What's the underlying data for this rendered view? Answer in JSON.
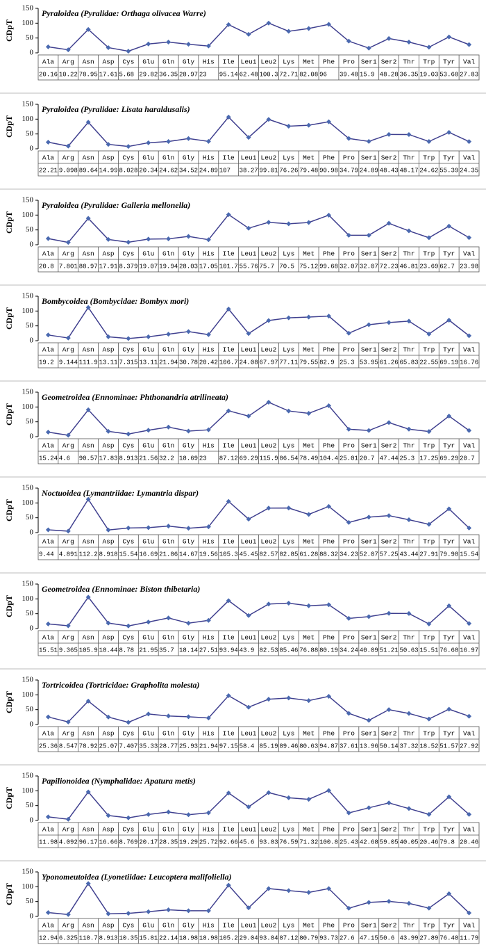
{
  "chart_data": [
    {
      "type": "line",
      "title": "Pyraloidea (Pyralidae: Orthaga olivacea Warre)",
      "y_label": "CDpT",
      "categories": [
        "Ala",
        "Arg",
        "Asn",
        "Asp",
        "Cys",
        "Glu",
        "Gln",
        "Gly",
        "His",
        "Ile",
        "Leu1",
        "Leu2",
        "Lys",
        "Met",
        "Phe",
        "Pro",
        "Ser1",
        "Ser2",
        "Thr",
        "Trp",
        "Tyr",
        "Val"
      ],
      "values": [
        20.16,
        10.22,
        78.95,
        17.61,
        5.68,
        29.82,
        36.35,
        28.97,
        23,
        95.14,
        62.48,
        100.3,
        72.71,
        82.08,
        96,
        39.48,
        15.9,
        48.28,
        36.35,
        19.03,
        53.68,
        27.83
      ],
      "color": "#40408f",
      "marker_color": "#4a69b0",
      "ylim": [
        0,
        150
      ],
      "yticks": [
        0,
        50,
        100,
        150
      ]
    },
    {
      "type": "line",
      "title": "Pyraloidea (Pyralidae: Lisata haraldusalis)",
      "y_label": "CDpT",
      "categories": [
        "Ala",
        "Arg",
        "Asn",
        "Asp",
        "Cys",
        "Glu",
        "Gln",
        "Gly",
        "His",
        "Ile",
        "Leu1",
        "Leu2",
        "Lys",
        "Met",
        "Phe",
        "Pro",
        "Ser1",
        "Ser2",
        "Thr",
        "Trp",
        "Tyr",
        "Val"
      ],
      "values": [
        22.21,
        9.098,
        89.64,
        14.99,
        8.028,
        20.34,
        24.62,
        34.52,
        24.89,
        107,
        38.27,
        99.01,
        76.26,
        79.48,
        90.98,
        34.79,
        24.89,
        48.43,
        48.17,
        24.62,
        55.39,
        24.35
      ],
      "color": "#40408f",
      "marker_color": "#4a69b0",
      "ylim": [
        0,
        150
      ],
      "yticks": [
        0,
        50,
        100,
        150
      ]
    },
    {
      "type": "line",
      "title": "Pyraloidea (Pyralidae: Galleria mellonella)",
      "y_label": "CDpT",
      "categories": [
        "Ala",
        "Arg",
        "Asn",
        "Asp",
        "Cys",
        "Glu",
        "Gln",
        "Gly",
        "His",
        "Ile",
        "Leu1",
        "Leu2",
        "Lys",
        "Met",
        "Phe",
        "Pro",
        "Ser1",
        "Ser2",
        "Thr",
        "Trp",
        "Tyr",
        "Val"
      ],
      "values": [
        20.8,
        7.801,
        88.97,
        17.91,
        8.379,
        19.07,
        19.94,
        28.03,
        17.05,
        101.7,
        55.76,
        75.7,
        70.5,
        75.12,
        99.68,
        32.07,
        32.07,
        72.23,
        46.81,
        23.69,
        62.7,
        23.98
      ],
      "color": "#40408f",
      "marker_color": "#4a69b0",
      "ylim": [
        0,
        150
      ],
      "yticks": [
        0,
        50,
        100,
        150
      ]
    },
    {
      "type": "line",
      "title": "Bombycoidea (Bombycidae: Bombyx mori)",
      "y_label": "CDpT",
      "categories": [
        "Ala",
        "Arg",
        "Asn",
        "Asp",
        "Cys",
        "Glu",
        "Gln",
        "Gly",
        "His",
        "Ile",
        "Leu1",
        "Leu2",
        "Lys",
        "Met",
        "Phe",
        "Pro",
        "Ser1",
        "Ser2",
        "Thr",
        "Trp",
        "Tyr",
        "Val"
      ],
      "values": [
        19.2,
        9.144,
        111.9,
        13.11,
        7.315,
        13.11,
        21.94,
        30.78,
        20.42,
        106.7,
        24.08,
        67.97,
        77.11,
        79.55,
        82.9,
        25.3,
        53.95,
        61.26,
        65.83,
        22.55,
        69.19,
        16.76
      ],
      "color": "#40408f",
      "marker_color": "#4a69b0",
      "ylim": [
        0,
        150
      ],
      "yticks": [
        0,
        50,
        100,
        150
      ]
    },
    {
      "type": "line",
      "title": "Geometroidea (Ennominae: Phthonandria atrilineata)",
      "y_label": "CDpT",
      "categories": [
        "Ala",
        "Arg",
        "Asn",
        "Asp",
        "Cys",
        "Glu",
        "Gln",
        "Gly",
        "His",
        "Ile",
        "Leu1",
        "Leu2",
        "Lys",
        "Met",
        "Phe",
        "Pro",
        "Ser1",
        "Ser2",
        "Thr",
        "Trp",
        "Tyr",
        "Val"
      ],
      "values": [
        15.24,
        4.6,
        90.57,
        17.83,
        8.913,
        21.56,
        32.2,
        18.69,
        23,
        87.12,
        69.29,
        115.9,
        86.54,
        78.49,
        104.4,
        25.01,
        20.7,
        47.44,
        25.3,
        17.25,
        69.29,
        20.7
      ],
      "color": "#40408f",
      "marker_color": "#4a69b0",
      "ylim": [
        0,
        150
      ],
      "yticks": [
        0,
        50,
        100,
        150
      ]
    },
    {
      "type": "line",
      "title": "Noctuoidea (Lymantriidae: Lymantria dispar)",
      "y_label": "CDpT",
      "categories": [
        "Ala",
        "Arg",
        "Asn",
        "Asp",
        "Cys",
        "Glu",
        "Gln",
        "Gly",
        "His",
        "Ile",
        "Leu1",
        "Leu2",
        "Lys",
        "Met",
        "Phe",
        "Pro",
        "Ser1",
        "Ser2",
        "Thr",
        "Trp",
        "Tyr",
        "Val"
      ],
      "values": [
        9.44,
        4.891,
        112.2,
        8.918,
        15.54,
        16.69,
        21.86,
        14.67,
        19.56,
        105.3,
        45.45,
        82.57,
        82.85,
        61.28,
        88.32,
        34.23,
        52.07,
        57.25,
        43.44,
        27.91,
        79.98,
        15.54
      ],
      "color": "#40408f",
      "marker_color": "#4a69b0",
      "ylim": [
        0,
        150
      ],
      "yticks": [
        0,
        50,
        100,
        150
      ]
    },
    {
      "type": "line",
      "title": "Geometroidea (Ennominae: Biston thibetaria)",
      "y_label": "CDpT",
      "categories": [
        "Ala",
        "Arg",
        "Asn",
        "Asp",
        "Cys",
        "Glu",
        "Gln",
        "Gly",
        "His",
        "Ile",
        "Leu1",
        "Leu2",
        "Lys",
        "Met",
        "Phe",
        "Pro",
        "Ser1",
        "Ser2",
        "Thr",
        "Trp",
        "Tyr",
        "Val"
      ],
      "values": [
        15.51,
        9.365,
        105.9,
        18.44,
        8.78,
        21.95,
        35.7,
        18.14,
        27.51,
        93.94,
        43.9,
        82.53,
        85.46,
        76.88,
        80.19,
        34.24,
        40.09,
        51.21,
        50.63,
        15.51,
        76.68,
        16.97
      ],
      "color": "#40408f",
      "marker_color": "#4a69b0",
      "ylim": [
        0,
        150
      ],
      "yticks": [
        0,
        50,
        100,
        150
      ]
    },
    {
      "type": "line",
      "title": "Tortricoidea (Tortricidae: Grapholita molesta)",
      "y_label": "CDpT",
      "categories": [
        "Ala",
        "Arg",
        "Asn",
        "Asp",
        "Cys",
        "Glu",
        "Gln",
        "Gly",
        "His",
        "Ile",
        "Leu1",
        "Leu2",
        "Lys",
        "Met",
        "Phe",
        "Pro",
        "Ser1",
        "Ser2",
        "Thr",
        "Trp",
        "Tyr",
        "Val"
      ],
      "values": [
        25.36,
        8.547,
        78.92,
        25.07,
        7.407,
        35.33,
        28.77,
        25.93,
        21.94,
        97.15,
        58.4,
        85.19,
        89.46,
        80.63,
        94.87,
        37.61,
        13.96,
        50.14,
        37.32,
        18.52,
        51.57,
        27.92
      ],
      "color": "#40408f",
      "marker_color": "#4a69b0",
      "ylim": [
        0,
        150
      ],
      "yticks": [
        0,
        50,
        100,
        150
      ]
    },
    {
      "type": "line",
      "title": "Papilionoidea (Nymphalidae: Apatura metis)",
      "y_label": "CDpT",
      "categories": [
        "Ala",
        "Arg",
        "Asn",
        "Asp",
        "Cys",
        "Glu",
        "Gln",
        "Gly",
        "His",
        "Ile",
        "Leu1",
        "Leu2",
        "Lys",
        "Met",
        "Phe",
        "Pro",
        "Ser1",
        "Ser2",
        "Thr",
        "Trp",
        "Tyr",
        "Val"
      ],
      "values": [
        11.98,
        4.092,
        96.17,
        16.66,
        8.769,
        20.17,
        28.35,
        19.29,
        25.72,
        92.66,
        45.6,
        93.83,
        76.59,
        71.32,
        100.8,
        25.43,
        42.68,
        59.05,
        40.05,
        20.46,
        79.8,
        20.46
      ],
      "color": "#40408f",
      "marker_color": "#4a69b0",
      "ylim": [
        0,
        150
      ],
      "yticks": [
        0,
        50,
        100,
        150
      ]
    },
    {
      "type": "line",
      "title": "Yponomeutoidea (Lyonetiidae: Leucoptera malifoliella)",
      "y_label": "CDpT",
      "categories": [
        "Ala",
        "Arg",
        "Asn",
        "Asp",
        "Cys",
        "Glu",
        "Gln",
        "Gly",
        "His",
        "Ile",
        "Leu1",
        "Leu2",
        "Lys",
        "Met",
        "Phe",
        "Pro",
        "Ser1",
        "Ser2",
        "Thr",
        "Trp",
        "Tyr",
        "Val"
      ],
      "values": [
        12.94,
        6.325,
        110.7,
        8.913,
        10.35,
        15.81,
        22.14,
        18.98,
        18.98,
        105.2,
        29.04,
        93.84,
        87.12,
        80.79,
        93.73,
        27.6,
        47.15,
        50.6,
        43.99,
        27.89,
        76.48,
        11.79
      ],
      "color": "#40408f",
      "marker_color": "#4a69b0",
      "ylim": [
        0,
        150
      ],
      "yticks": [
        0,
        50,
        100,
        150
      ]
    }
  ]
}
